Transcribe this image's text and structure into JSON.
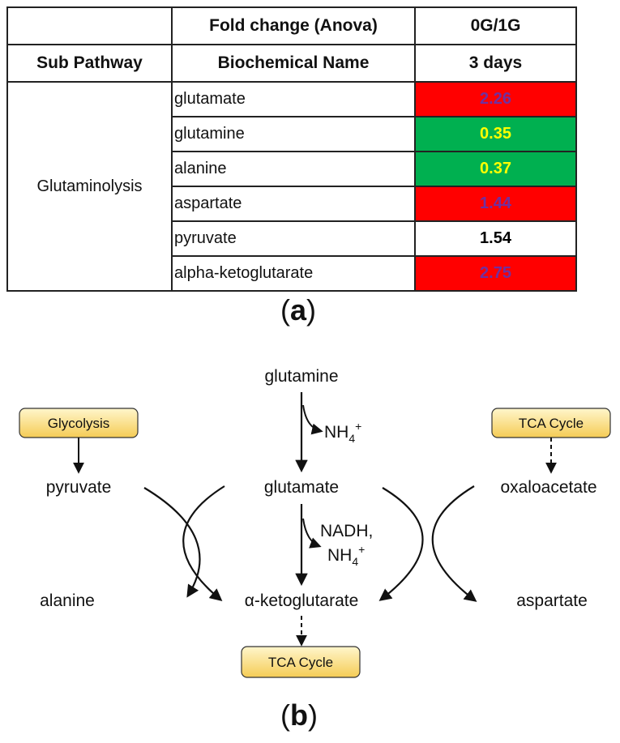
{
  "table": {
    "header_row1": {
      "left": "",
      "fold_change": "Fold change (Anova)",
      "ratio": "0G/1G"
    },
    "header_row2": {
      "sub_pathway": "Sub Pathway",
      "biochemical_name": "Biochemical Name",
      "duration": "3 days"
    },
    "pathway": "Glutaminolysis",
    "rows": [
      {
        "name": "glutamate",
        "value": "2.26",
        "highlight": "#ff0000",
        "text_color": "#7030a0"
      },
      {
        "name": "glutamine",
        "value": "0.35",
        "highlight": "#00b050",
        "text_color": "#ffff00"
      },
      {
        "name": "alanine",
        "value": "0.37",
        "highlight": "#00b050",
        "text_color": "#ffff00"
      },
      {
        "name": "aspartate",
        "value": "1.44",
        "highlight": "#ff0000",
        "text_color": "#7030a0"
      },
      {
        "name": "pyruvate",
        "value": "1.54",
        "highlight": "#ffffff",
        "text_color": "#000000"
      },
      {
        "name": "alpha-ketoglutarate",
        "value": "2.75",
        "highlight": "#ff0000",
        "text_color": "#7030a0"
      }
    ]
  },
  "panel_a_label": "a",
  "panel_b_label": "b",
  "diagram": {
    "nodes": {
      "glutamine": "glutamine",
      "glutamate": "glutamate",
      "alpha_kg": "α-ketoglutarate",
      "pyruvate": "pyruvate",
      "alanine": "alanine",
      "oxaloacetate": "oxaloacetate",
      "aspartate": "aspartate"
    },
    "boxes": {
      "glycolysis": "Glycolysis",
      "tca_top": "TCA Cycle",
      "tca_bottom": "TCA Cycle"
    },
    "byproducts": {
      "nh4_1_main": "NH",
      "nh4_1_sub": "4",
      "nh4_1_sup": "+",
      "nadh": "NADH,",
      "nh4_2_main": "NH",
      "nh4_2_sub": "4",
      "nh4_2_sup": "+"
    },
    "box_fill_top": "#fff6cc",
    "box_fill_bottom": "#f5cc55"
  }
}
